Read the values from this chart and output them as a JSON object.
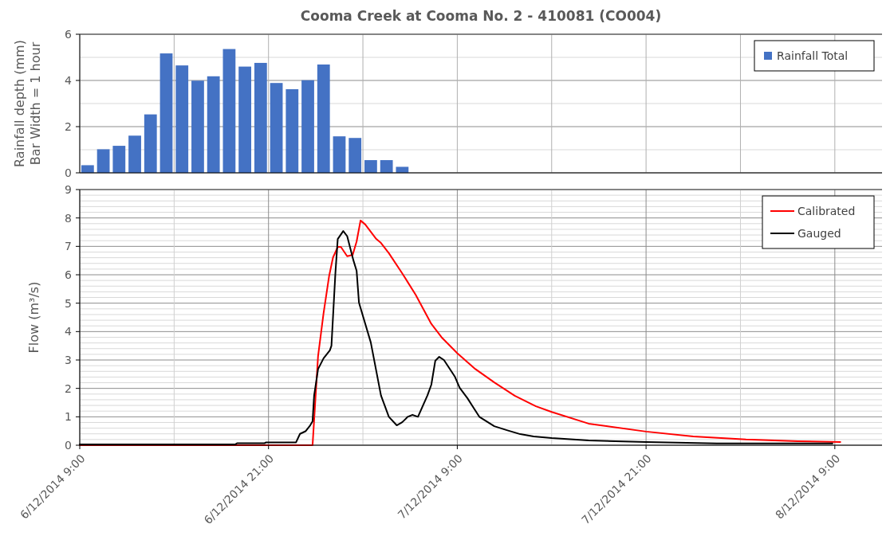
{
  "chart_data": [
    {
      "type": "bar",
      "title": "Cooma Creek at Cooma No. 2 - 410081 (CO004)",
      "ylabel": "Rainfall depth (mm)\nBar Width = 1 hour",
      "x": [
        "2014-12-06T09:30",
        "2014-12-06T10:30",
        "2014-12-06T11:30",
        "2014-12-06T12:30",
        "2014-12-06T13:30",
        "2014-12-06T14:30",
        "2014-12-06T15:30",
        "2014-12-06T16:30",
        "2014-12-06T17:30",
        "2014-12-06T18:30",
        "2014-12-06T19:30",
        "2014-12-06T20:30",
        "2014-12-06T21:30",
        "2014-12-06T22:30",
        "2014-12-06T23:30",
        "2014-12-07T00:30",
        "2014-12-07T01:30",
        "2014-12-07T02:30",
        "2014-12-07T03:30",
        "2014-12-07T04:30",
        "2014-12-07T05:30"
      ],
      "series": [
        {
          "name": "Rainfall Total",
          "color": "#4472c4",
          "values": [
            0.33,
            1.02,
            1.17,
            1.61,
            2.53,
            5.17,
            4.65,
            3.99,
            4.18,
            5.36,
            4.6,
            4.76,
            3.89,
            3.62,
            4.01,
            4.69,
            1.58,
            1.51,
            0.55,
            0.55,
            0.26
          ]
        }
      ],
      "xlim": [
        "2014-12-06T09:00",
        "2014-12-08T12:00"
      ],
      "xticks": [
        {
          "value": "2014-12-06T09:00",
          "label": null
        },
        {
          "value": "2014-12-06T15:00",
          "label": null
        },
        {
          "value": "2014-12-06T21:00",
          "label": null
        },
        {
          "value": "2014-12-07T03:00",
          "label": null
        },
        {
          "value": "2014-12-07T09:00",
          "label": null
        },
        {
          "value": "2014-12-07T15:00",
          "label": null
        },
        {
          "value": "2014-12-07T21:00",
          "label": null
        },
        {
          "value": "2014-12-08T03:00",
          "label": null
        },
        {
          "value": "2014-12-08T09:00",
          "label": null
        }
      ],
      "ylim": [
        0,
        6
      ],
      "yticks": [
        0,
        {
          "value": 1,
          "label": null
        },
        2,
        {
          "value": 3,
          "label": null
        },
        4,
        {
          "value": 5,
          "label": null
        },
        6
      ],
      "grid": true,
      "legend": "top right",
      "tick_labels": "y"
    },
    {
      "type": "line",
      "ylabel": "Flow (m³/s)",
      "series": [
        {
          "name": "Calibrated",
          "color": "#ff0000",
          "x": [
            "2014-12-06T09:00",
            "2014-12-06T23:48",
            "2014-12-07T00:09",
            "2014-12-07T00:30",
            "2014-12-07T00:51",
            "2014-12-07T01:06",
            "2014-12-07T01:24",
            "2014-12-07T01:36",
            "2014-12-07T02:00",
            "2014-12-07T02:21",
            "2014-12-07T02:36",
            "2014-12-07T02:51",
            "2014-12-07T03:09",
            "2014-12-07T03:51",
            "2014-12-07T04:09",
            "2014-12-07T04:39",
            "2014-12-07T05:30",
            "2014-12-07T06:21",
            "2014-12-07T07:21",
            "2014-12-07T08:00",
            "2014-12-07T09:00",
            "2014-12-07T10:09",
            "2014-12-07T11:21",
            "2014-12-07T12:39",
            "2014-12-07T14:00",
            "2014-12-07T15:00",
            "2014-12-07T17:21",
            "2014-12-07T21:00",
            "2014-12-08T00:00",
            "2014-12-08T03:21",
            "2014-12-08T06:39",
            "2014-12-08T09:21"
          ],
          "values": [
            0,
            0,
            3.14,
            4.65,
            5.95,
            6.61,
            6.98,
            6.98,
            6.65,
            6.7,
            7.17,
            7.91,
            7.77,
            7.26,
            7.12,
            6.76,
            6.05,
            5.3,
            4.27,
            3.8,
            3.24,
            2.68,
            2.21,
            1.74,
            1.37,
            1.17,
            0.76,
            0.48,
            0.31,
            0.2,
            0.14,
            0.11
          ]
        },
        {
          "name": "Gauged",
          "color": "#000000",
          "x": [
            "2014-12-06T09:00",
            "2014-12-06T18:54",
            "2014-12-06T19:00",
            "2014-12-06T20:45",
            "2014-12-06T20:51",
            "2014-12-06T22:45",
            "2014-12-06T23:00",
            "2014-12-06T23:21",
            "2014-12-06T23:39",
            "2014-12-06T23:48",
            "2014-12-06T23:54",
            "2014-12-07T00:09",
            "2014-12-07T00:30",
            "2014-12-07T00:54",
            "2014-12-07T01:00",
            "2014-12-07T01:15",
            "2014-12-07T01:24",
            "2014-12-07T01:45",
            "2014-12-07T02:00",
            "2014-12-07T02:24",
            "2014-12-07T02:36",
            "2014-12-07T02:45",
            "2014-12-07T03:30",
            "2014-12-07T04:09",
            "2014-12-07T04:39",
            "2014-12-07T05:09",
            "2014-12-07T05:30",
            "2014-12-07T05:51",
            "2014-12-07T06:09",
            "2014-12-07T06:30",
            "2014-12-07T07:06",
            "2014-12-07T07:21",
            "2014-12-07T07:36",
            "2014-12-07T07:51",
            "2014-12-07T08:09",
            "2014-12-07T08:51",
            "2014-12-07T09:09",
            "2014-12-07T09:39",
            "2014-12-07T10:24",
            "2014-12-07T11:21",
            "2014-12-07T12:09",
            "2014-12-07T13:00",
            "2014-12-07T13:51",
            "2014-12-07T15:00",
            "2014-12-07T17:21",
            "2014-12-07T21:00",
            "2014-12-08T01:30",
            "2014-12-08T08:51"
          ],
          "values": [
            0.03,
            0.03,
            0.07,
            0.07,
            0.1,
            0.1,
            0.4,
            0.49,
            0.7,
            0.84,
            1.75,
            2.68,
            3.06,
            3.34,
            3.5,
            6.05,
            7.26,
            7.54,
            7.36,
            6.5,
            6.14,
            5.02,
            3.62,
            1.75,
            1.0,
            0.7,
            0.81,
            1.0,
            1.07,
            1.0,
            1.75,
            2.13,
            2.97,
            3.11,
            3.0,
            2.41,
            2.02,
            1.65,
            1.0,
            0.67,
            0.53,
            0.39,
            0.31,
            0.25,
            0.17,
            0.11,
            0.06,
            0.06
          ]
        }
      ],
      "xlim": [
        "2014-12-06T09:00",
        "2014-12-08T12:00"
      ],
      "xticks": [
        {
          "value": "2014-12-06T09:00",
          "label": "6/12/2014 9:00"
        },
        {
          "value": "2014-12-06T15:00",
          "label": null
        },
        {
          "value": "2014-12-06T21:00",
          "label": "6/12/2014 21:00"
        },
        {
          "value": "2014-12-07T03:00",
          "label": null
        },
        {
          "value": "2014-12-07T09:00",
          "label": "7/12/2014 9:00"
        },
        {
          "value": "2014-12-07T15:00",
          "label": null
        },
        {
          "value": "2014-12-07T21:00",
          "label": "7/12/2014 21:00"
        },
        {
          "value": "2014-12-08T03:00",
          "label": null
        },
        {
          "value": "2014-12-08T09:00",
          "label": "8/12/2014 9:00"
        }
      ],
      "ylim": [
        0,
        9
      ],
      "yticks": [
        0,
        {
          "value": 0.2,
          "label": null
        },
        {
          "value": 0.4,
          "label": null
        },
        {
          "value": 0.6,
          "label": null
        },
        {
          "value": 0.8,
          "label": null
        },
        1,
        {
          "value": 1.2,
          "label": null
        },
        {
          "value": 1.4,
          "label": null
        },
        {
          "value": 1.6,
          "label": null
        },
        {
          "value": 1.8,
          "label": null
        },
        2,
        {
          "value": 2.2,
          "label": null
        },
        {
          "value": 2.4,
          "label": null
        },
        {
          "value": 2.6,
          "label": null
        },
        {
          "value": 2.8,
          "label": null
        },
        3,
        {
          "value": 3.2,
          "label": null
        },
        {
          "value": 3.4,
          "label": null
        },
        {
          "value": 3.6,
          "label": null
        },
        {
          "value": 3.8,
          "label": null
        },
        4,
        {
          "value": 4.2,
          "label": null
        },
        {
          "value": 4.4,
          "label": null
        },
        {
          "value": 4.6,
          "label": null
        },
        {
          "value": 4.8,
          "label": null
        },
        5,
        {
          "value": 5.2,
          "label": null
        },
        {
          "value": 5.4,
          "label": null
        },
        {
          "value": 5.6,
          "label": null
        },
        {
          "value": 5.8,
          "label": null
        },
        6,
        {
          "value": 6.2,
          "label": null
        },
        {
          "value": 6.4,
          "label": null
        },
        {
          "value": 6.6,
          "label": null
        },
        {
          "value": 6.8,
          "label": null
        },
        7,
        {
          "value": 7.2,
          "label": null
        },
        {
          "value": 7.4,
          "label": null
        },
        {
          "value": 7.6,
          "label": null
        },
        {
          "value": 7.8,
          "label": null
        },
        8,
        {
          "value": 8.2,
          "label": null
        },
        {
          "value": 8.4,
          "label": null
        },
        {
          "value": 8.6,
          "label": null
        },
        {
          "value": 8.8,
          "label": null
        },
        9
      ],
      "grid": true,
      "legend": "top right"
    }
  ]
}
